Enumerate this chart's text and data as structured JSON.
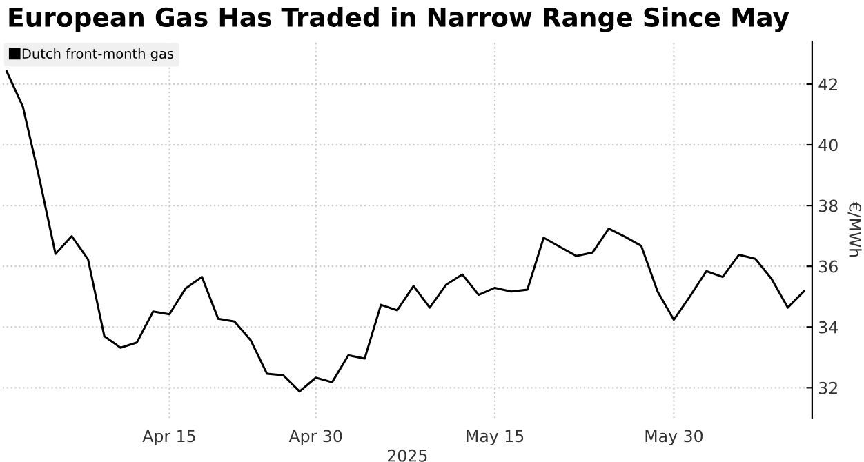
{
  "chart_data": {
    "type": "line",
    "title": "European Gas Has Traded in Narrow Range Since May",
    "xlabel": "2025",
    "ylabel": "€/MWh",
    "categories": [
      null,
      null,
      null,
      null,
      null,
      null,
      null,
      null,
      null,
      null,
      "Apr 15",
      null,
      null,
      null,
      null,
      null,
      null,
      null,
      null,
      "Apr 30",
      null,
      null,
      null,
      null,
      null,
      null,
      null,
      null,
      null,
      null,
      "May 15",
      null,
      null,
      null,
      null,
      null,
      null,
      null,
      null,
      null,
      null,
      "May 30",
      null,
      null,
      null,
      null,
      null,
      null,
      null,
      null
    ],
    "series": [
      {
        "name": "Dutch front-month gas",
        "color": "#000000",
        "values": [
          42.42,
          41.25,
          38.92,
          36.41,
          36.99,
          36.23,
          33.7,
          33.32,
          33.49,
          34.51,
          34.42,
          35.27,
          35.65,
          34.27,
          34.18,
          33.56,
          32.46,
          32.41,
          31.88,
          32.33,
          32.18,
          33.07,
          32.96,
          34.73,
          34.55,
          35.35,
          34.64,
          35.39,
          35.73,
          35.06,
          35.29,
          35.17,
          35.23,
          36.94,
          36.64,
          36.34,
          36.45,
          37.24,
          36.97,
          36.67,
          35.17,
          34.24,
          35.02,
          35.84,
          35.65,
          36.38,
          36.25,
          35.59,
          34.64,
          35.18
        ]
      }
    ],
    "ylim": [
      31,
      43.4
    ],
    "yticks": [
      32,
      34,
      36,
      38,
      40,
      42
    ],
    "grid": true,
    "legend": "top left",
    "marker": "none",
    "line_style": "solid"
  }
}
